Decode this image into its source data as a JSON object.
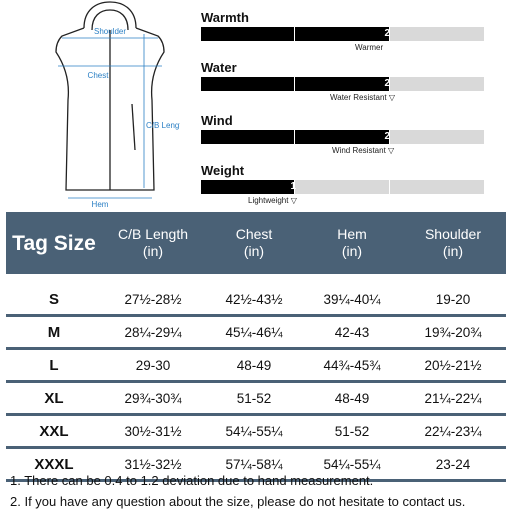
{
  "diagram": {
    "labels": {
      "shoulder": "Shoulder",
      "chest": "Chest",
      "cb_length": "C/B Length",
      "hem": "Hem"
    }
  },
  "ratings": [
    {
      "title": "Warmth",
      "level": "2",
      "note": "Warmer",
      "level_value": 2,
      "max_level": 3
    },
    {
      "title": "Water",
      "level": "2",
      "note": "Water Resistant ▽",
      "level_value": 2,
      "max_level": 3
    },
    {
      "title": "Wind",
      "level": "2",
      "note": "Wind Resistant ▽",
      "level_value": 2,
      "max_level": 3
    },
    {
      "title": "Weight",
      "level": "1",
      "note": "Lightweight ▽",
      "level_value": 1,
      "max_level": 3
    }
  ],
  "size_table": {
    "headers": {
      "tag": "Tag Size",
      "cb_length": [
        "C/B Length",
        "(in)"
      ],
      "chest": [
        "Chest",
        "(in)"
      ],
      "hem": [
        "Hem",
        "(in)"
      ],
      "shoulder": [
        "Shoulder",
        "(in)"
      ]
    },
    "rows": [
      {
        "size": "S",
        "cb_length": "27½-28½",
        "chest": "42½-43½",
        "hem": "39¼-40¼",
        "shoulder": "19-20"
      },
      {
        "size": "M",
        "cb_length": "28¼-29¼",
        "chest": "45¼-46¼",
        "hem": "42-43",
        "shoulder": "19¾-20¾"
      },
      {
        "size": "L",
        "cb_length": "29-30",
        "chest": "48-49",
        "hem": "44¾-45¾",
        "shoulder": "20½-21½"
      },
      {
        "size": "XL",
        "cb_length": "29¾-30¾",
        "chest": "51-52",
        "hem": "48-49",
        "shoulder": "21¼-22¼"
      },
      {
        "size": "XXL",
        "cb_length": "30½-31½",
        "chest": "54¼-55¼",
        "hem": "51-52",
        "shoulder": "22¼-23¼"
      },
      {
        "size": "XXXL",
        "cb_length": "31½-32½",
        "chest": "57¼-58¼",
        "hem": "54¼-55¼",
        "shoulder": "23-24"
      }
    ]
  },
  "notes": [
    "1. There can be 0.4 to 1.2 deviation due to hand measurement.",
    "2. If you have any question about the size, please do not hesitate to contact us."
  ],
  "colors": {
    "header_bg": "#4a6176",
    "meter_on": "#000000",
    "meter_off": "#d9d9d9",
    "measure_line": "#2a7fc4"
  }
}
